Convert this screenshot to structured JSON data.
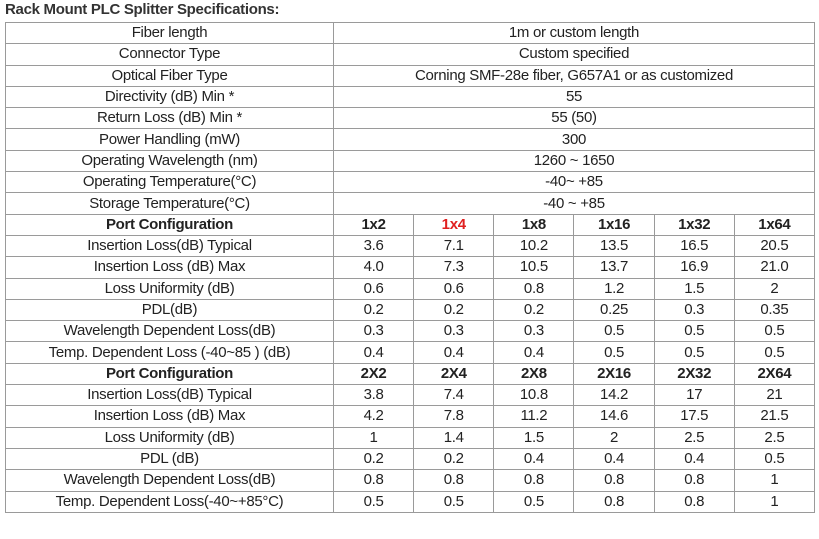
{
  "title": "Rack Mount PLC Splitter Specifications:",
  "table": {
    "specs": [
      [
        "Fiber length",
        "1m or custom length"
      ],
      [
        "Connector Type",
        "Custom specified"
      ],
      [
        "Optical Fiber Type",
        "Corning SMF-28e fiber, G657A1 or as customized"
      ],
      [
        "Directivity (dB) Min *",
        "55"
      ],
      [
        "Return Loss (dB) Min *",
        "55 (50)"
      ],
      [
        "Power Handling (mW)",
        "300"
      ],
      [
        "Operating Wavelength (nm)",
        "1260 ~ 1650"
      ],
      [
        "Operating Temperature(°C)",
        "-40~ +85"
      ],
      [
        "Storage Temperature(°C)",
        "-40 ~ +85"
      ]
    ],
    "sections": [
      {
        "header": [
          "Port Configuration",
          "1x2",
          "1x4",
          "1x8",
          "1x16",
          "1x32",
          "1x64"
        ],
        "rows": [
          [
            "Insertion Loss(dB) Typical",
            "3.6",
            "7.1",
            "10.2",
            "13.5",
            "16.5",
            "20.5"
          ],
          [
            "Insertion Loss (dB) Max",
            "4.0",
            "7.3",
            "10.5",
            "13.7",
            "16.9",
            "21.0"
          ],
          [
            "Loss Uniformity (dB)",
            "0.6",
            "0.6",
            "0.8",
            "1.2",
            "1.5",
            "2"
          ],
          [
            "PDL(dB)",
            "0.2",
            "0.2",
            "0.2",
            "0.25",
            "0.3",
            "0.35"
          ],
          [
            "Wavelength Dependent Loss(dB)",
            "0.3",
            "0.3",
            "0.3",
            "0.5",
            "0.5",
            "0.5"
          ],
          [
            "Temp. Dependent Loss (-40~85 ) (dB)",
            "0.4",
            "0.4",
            "0.4",
            "0.5",
            "0.5",
            "0.5"
          ]
        ]
      },
      {
        "header": [
          "Port Configuration",
          "2X2",
          "2X4",
          "2X8",
          "2X16",
          "2X32",
          "2X64"
        ],
        "rows": [
          [
            "Insertion Loss(dB) Typical",
            "3.8",
            "7.4",
            "10.8",
            "14.2",
            "17",
            "21"
          ],
          [
            "Insertion Loss (dB) Max",
            "4.2",
            "7.8",
            "11.2",
            "14.6",
            "17.5",
            "21.5"
          ],
          [
            "Loss Uniformity (dB)",
            "1",
            "1.4",
            "1.5",
            "2",
            "2.5",
            "2.5"
          ],
          [
            "PDL (dB)",
            "0.2",
            "0.2",
            "0.4",
            "0.4",
            "0.4",
            "0.5"
          ],
          [
            "Wavelength Dependent Loss(dB)",
            "0.8",
            "0.8",
            "0.8",
            "0.8",
            "0.8",
            "1"
          ],
          [
            "Temp. Dependent Loss(-40~+85°C)",
            "0.5",
            "0.5",
            "0.5",
            "0.8",
            "0.8",
            "1"
          ]
        ]
      }
    ]
  }
}
